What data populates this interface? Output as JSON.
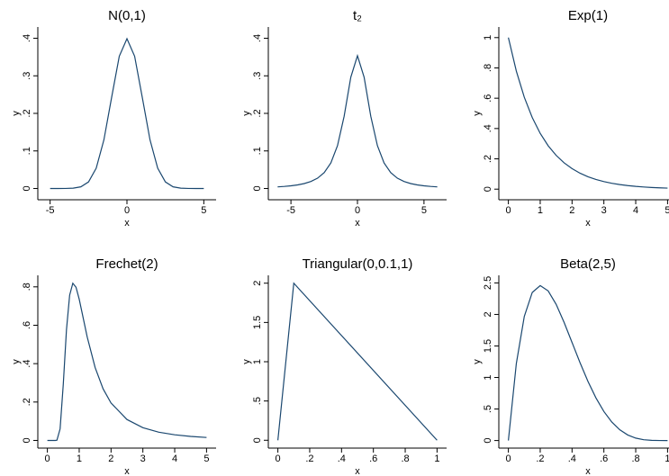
{
  "chart_data": [
    {
      "type": "line",
      "title": "N(0,1)",
      "x_label": "x",
      "y_label": "y",
      "color": "#1a476f",
      "x": [
        -5,
        -4.5,
        -4,
        -3.5,
        -3,
        -2.5,
        -2,
        -1.5,
        -1,
        -0.5,
        0,
        0.5,
        1,
        1.5,
        2,
        2.5,
        3,
        3.5,
        4,
        4.5,
        5
      ],
      "values": [
        0,
        0,
        0.0001,
        0.0009,
        0.0044,
        0.0175,
        0.054,
        0.1295,
        0.242,
        0.3521,
        0.3989,
        0.3521,
        0.242,
        0.1295,
        0.054,
        0.0175,
        0.0044,
        0.0009,
        0.0001,
        0,
        0
      ],
      "xlim": [
        -5.8,
        5.8
      ],
      "ylim": [
        -0.03,
        0.43
      ],
      "xticks": [
        -5,
        0,
        5
      ],
      "yticks": [
        0,
        {
          "value": 0.1,
          "label": ".1"
        },
        {
          "value": 0.2,
          "label": ".2"
        },
        {
          "value": 0.3,
          "label": ".3"
        },
        {
          "value": 0.4,
          "label": ".4"
        }
      ]
    },
    {
      "type": "line",
      "title": "t₂",
      "x_label": "x",
      "y_label": "y",
      "color": "#1a476f",
      "x": [
        -6,
        -5.5,
        -5,
        -4.5,
        -4,
        -3.5,
        -3,
        -2.5,
        -2,
        -1.5,
        -1,
        -0.5,
        0,
        0.5,
        1,
        1.5,
        2,
        2.5,
        3,
        3.5,
        4,
        4.5,
        5,
        5.5,
        6
      ],
      "values": [
        0.0043,
        0.0055,
        0.0071,
        0.0095,
        0.0131,
        0.0186,
        0.0274,
        0.0422,
        0.068,
        0.1141,
        0.1925,
        0.2963,
        0.3536,
        0.2963,
        0.1925,
        0.1141,
        0.068,
        0.0422,
        0.0274,
        0.0186,
        0.0131,
        0.0095,
        0.0071,
        0.0055,
        0.0043
      ],
      "xlim": [
        -6.7,
        6.7
      ],
      "ylim": [
        -0.03,
        0.43
      ],
      "xticks": [
        -5,
        0,
        5
      ],
      "yticks": [
        0,
        {
          "value": 0.1,
          "label": ".1"
        },
        {
          "value": 0.2,
          "label": ".2"
        },
        {
          "value": 0.3,
          "label": ".3"
        },
        {
          "value": 0.4,
          "label": ".4"
        }
      ]
    },
    {
      "type": "line",
      "title": "Exp(1)",
      "x_label": "x",
      "y_label": "y",
      "color": "#1a476f",
      "x": [
        0,
        0.25,
        0.5,
        0.75,
        1,
        1.25,
        1.5,
        1.75,
        2,
        2.25,
        2.5,
        2.75,
        3,
        3.25,
        3.5,
        3.75,
        4,
        4.25,
        4.5,
        4.75,
        5
      ],
      "values": [
        1,
        0.7788,
        0.6065,
        0.4724,
        0.3679,
        0.2865,
        0.2231,
        0.1738,
        0.1353,
        0.1054,
        0.0821,
        0.0639,
        0.0498,
        0.0388,
        0.0302,
        0.0235,
        0.0183,
        0.0143,
        0.0111,
        0.0087,
        0.0067
      ],
      "xlim": [
        -0.3,
        5.3
      ],
      "ylim": [
        -0.07,
        1.07
      ],
      "xticks": [
        0,
        1,
        2,
        3,
        4,
        5
      ],
      "yticks": [
        0,
        {
          "value": 0.2,
          "label": ".2"
        },
        {
          "value": 0.4,
          "label": ".4"
        },
        {
          "value": 0.6,
          "label": ".6"
        },
        {
          "value": 0.8,
          "label": ".8"
        },
        1
      ]
    },
    {
      "type": "line",
      "title": "Frechet(2)",
      "x_label": "x",
      "y_label": "y",
      "color": "#1a476f",
      "x": [
        0,
        0.25,
        0.3,
        0.4,
        0.5,
        0.6,
        0.7,
        0.8,
        0.9,
        1,
        1.25,
        1.5,
        1.75,
        2,
        2.5,
        3,
        3.5,
        4,
        4.5,
        5
      ],
      "values": [
        0,
        0,
        0.001,
        0.0603,
        0.293,
        0.576,
        0.757,
        0.819,
        0.798,
        0.736,
        0.54,
        0.38,
        0.269,
        0.195,
        0.109,
        0.0663,
        0.043,
        0.0294,
        0.0209,
        0.0154
      ],
      "xlim": [
        -0.3,
        5.3
      ],
      "ylim": [
        -0.04,
        0.86
      ],
      "xticks": [
        0,
        1,
        2,
        3,
        4,
        5
      ],
      "yticks": [
        0,
        {
          "value": 0.2,
          "label": ".2"
        },
        {
          "value": 0.4,
          "label": ".4"
        },
        {
          "value": 0.6,
          "label": ".6"
        },
        {
          "value": 0.8,
          "label": ".8"
        }
      ]
    },
    {
      "type": "line",
      "title": "Triangular(0,0.1,1)",
      "x_label": "x",
      "y_label": "y",
      "color": "#1a476f",
      "x": [
        0,
        0.1,
        1
      ],
      "values": [
        0,
        2,
        0
      ],
      "xlim": [
        -0.06,
        1.06
      ],
      "ylim": [
        -0.1,
        2.1
      ],
      "xticks": [
        0,
        {
          "value": 0.2,
          "label": ".2"
        },
        {
          "value": 0.4,
          "label": ".4"
        },
        {
          "value": 0.6,
          "label": ".6"
        },
        {
          "value": 0.8,
          "label": ".8"
        },
        1
      ],
      "yticks": [
        0,
        {
          "value": 0.5,
          "label": ".5"
        },
        1,
        1.5,
        2
      ]
    },
    {
      "type": "line",
      "title": "Beta(2,5)",
      "x_label": "x",
      "y_label": "y",
      "color": "#1a476f",
      "x": [
        0,
        0.05,
        0.1,
        0.15,
        0.2,
        0.25,
        0.3,
        0.35,
        0.4,
        0.45,
        0.5,
        0.55,
        0.6,
        0.65,
        0.7,
        0.75,
        0.8,
        0.85,
        0.9,
        0.95,
        1
      ],
      "values": [
        0,
        1.2218,
        1.9683,
        2.349,
        2.4576,
        2.373,
        2.1609,
        1.8743,
        1.5552,
        1.2353,
        0.9375,
        0.6766,
        0.4608,
        0.2926,
        0.1701,
        0.0879,
        0.0384,
        0.0129,
        0.0027,
        0.0002,
        0
      ],
      "xlim": [
        -0.06,
        1.06
      ],
      "ylim": [
        -0.12,
        2.62
      ],
      "xticks": [
        0,
        {
          "value": 0.2,
          "label": ".2"
        },
        {
          "value": 0.4,
          "label": ".4"
        },
        {
          "value": 0.6,
          "label": ".6"
        },
        {
          "value": 0.8,
          "label": ".8"
        },
        1
      ],
      "yticks": [
        0,
        {
          "value": 0.5,
          "label": ".5"
        },
        1,
        1.5,
        2,
        2.5
      ]
    }
  ]
}
